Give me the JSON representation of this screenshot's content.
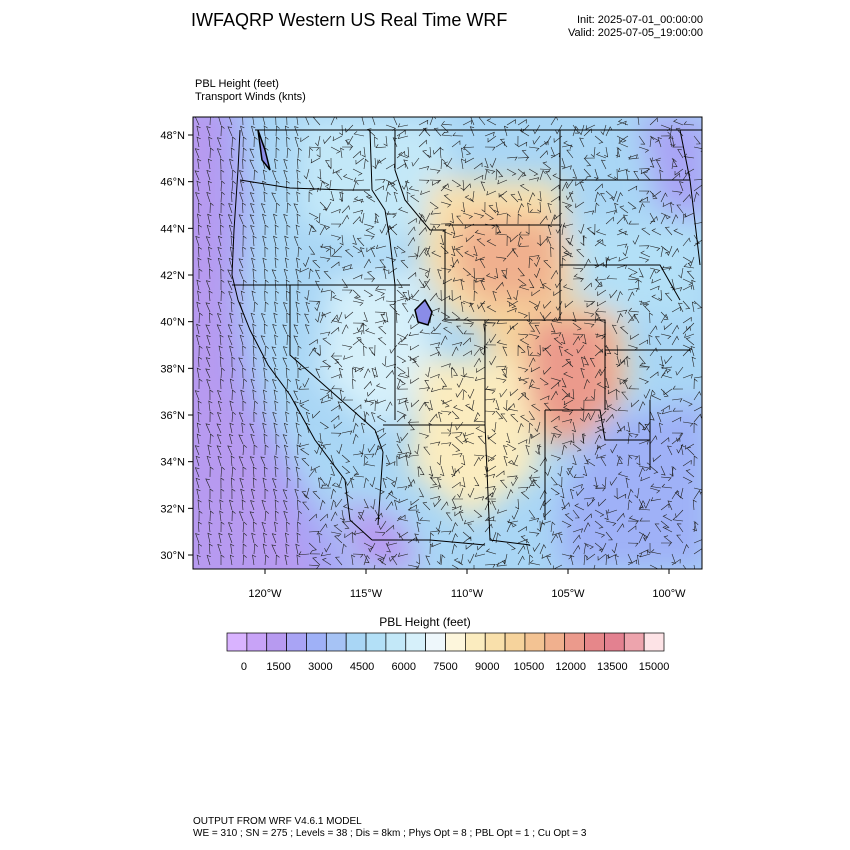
{
  "header": {
    "title": "IWFAQRP Western US Real Time WRF",
    "init": "Init: 2025-07-01_00:00:00",
    "valid": "Valid: 2025-07-05_19:00:00"
  },
  "fields": {
    "primary": "PBL Height   (feet)",
    "secondary": "Transport Winds   (knts)"
  },
  "axes": {
    "lat_labels": [
      "48°N",
      "46°N",
      "44°N",
      "42°N",
      "40°N",
      "38°N",
      "36°N",
      "34°N",
      "32°N",
      "30°N"
    ],
    "lat_values": [
      48,
      46,
      44,
      42,
      40,
      38,
      36,
      34,
      32,
      30
    ],
    "lon_labels": [
      "120°W",
      "115°W",
      "110°W",
      "105°W",
      "100°W"
    ],
    "lon_values": [
      -120,
      -115,
      -110,
      -105,
      -100
    ]
  },
  "colorbar": {
    "title": "PBL Height  (feet)",
    "tick_labels": [
      "0",
      "1500",
      "3000",
      "4500",
      "6000",
      "7500",
      "9000",
      "10500",
      "12000",
      "13500",
      "15000"
    ],
    "levels": 22,
    "colors": [
      "#d9b3ff",
      "#c8a3f7",
      "#b79af0",
      "#a9a4f5",
      "#9fb1f7",
      "#a6c3f5",
      "#a9d6f5",
      "#b3e0f7",
      "#c3e8f8",
      "#d6f0fa",
      "#eef7fb",
      "#fdf6dc",
      "#fbecbf",
      "#f9e0ab",
      "#f6d39c",
      "#f3c393",
      "#f0b08e",
      "#eb9a8c",
      "#e6878a",
      "#e38190",
      "#eda4ad",
      "#fde3e6"
    ]
  },
  "footer": {
    "line1": "OUTPUT FROM WRF V4.6.1 MODEL",
    "line2": "WE = 310 ; SN = 275 ; Levels = 38 ; Dis = 8km ; Phys Opt = 8 ; PBL Opt = 1 ; Cu Opt = 3"
  }
}
